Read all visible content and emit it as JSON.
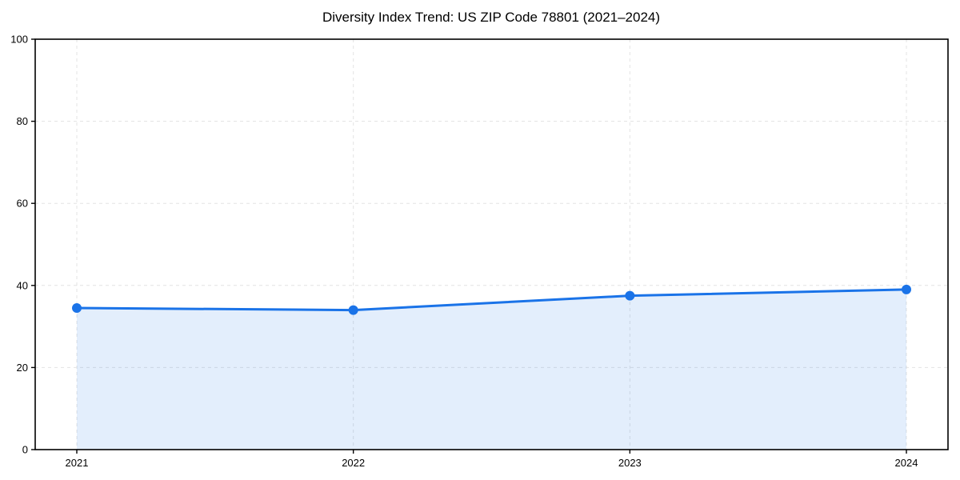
{
  "chart_data": {
    "type": "area",
    "title": "Diversity Index Trend: US ZIP Code 78801 (2021–2024)",
    "categories": [
      "2021",
      "2022",
      "2023",
      "2024"
    ],
    "series": [
      {
        "name": "Diversity Index",
        "values": [
          34.5,
          34.0,
          37.5,
          39.0
        ]
      }
    ],
    "xlabel": "",
    "ylabel": "",
    "ylim": [
      0,
      100
    ],
    "yticks": [
      0,
      20,
      40,
      60,
      80,
      100
    ],
    "grid": "dashed both directions",
    "legend": "none",
    "colors": {
      "line": "#1a73e8",
      "marker": "#1a73e8",
      "fill": "#1a73e8",
      "fill_opacity": 0.12,
      "grid": "#e3e3e3",
      "axis": "#000000",
      "text": "#000000",
      "background": "#ffffff"
    }
  }
}
